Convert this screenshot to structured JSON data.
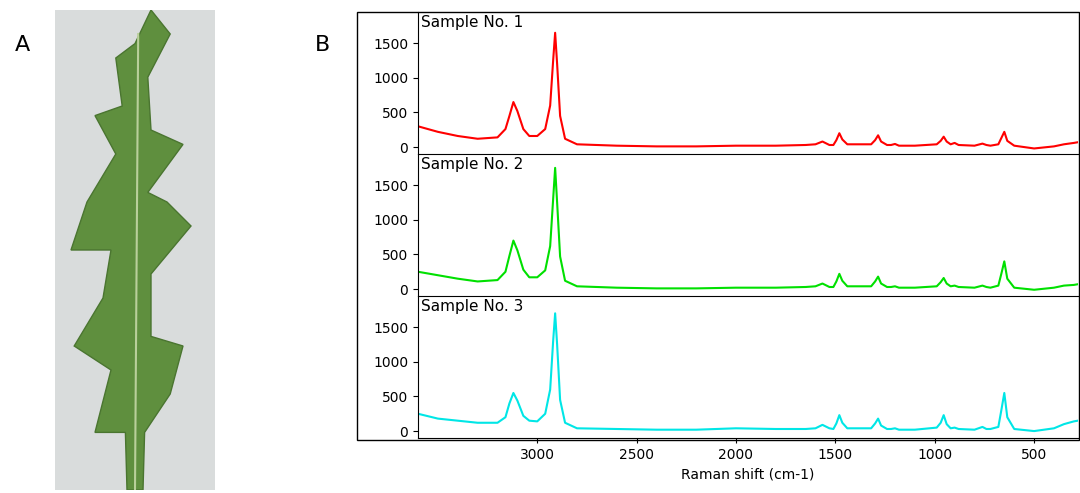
{
  "panel_labels": [
    "A",
    "B"
  ],
  "chart_data": [
    {
      "type": "line",
      "title": "Sample No. 1",
      "tick_labels": "y",
      "x": [
        3600,
        3500,
        3400,
        3300,
        3200,
        3160,
        3140,
        3120,
        3100,
        3070,
        3040,
        3000,
        2960,
        2935,
        2920,
        2910,
        2900,
        2885,
        2860,
        2800,
        2600,
        2400,
        2200,
        2000,
        1800,
        1650,
        1600,
        1565,
        1530,
        1510,
        1495,
        1480,
        1465,
        1440,
        1320,
        1300,
        1285,
        1270,
        1240,
        1220,
        1200,
        1180,
        1100,
        990,
        970,
        955,
        940,
        920,
        900,
        880,
        800,
        760,
        740,
        720,
        680,
        665,
        650,
        635,
        600,
        500,
        400,
        350,
        300,
        280
      ],
      "series": [
        {
          "color": "#ff0000",
          "values": [
            300,
            220,
            160,
            120,
            140,
            260,
            450,
            650,
            520,
            260,
            160,
            160,
            260,
            600,
            1250,
            1650,
            1200,
            450,
            120,
            40,
            20,
            10,
            10,
            20,
            20,
            30,
            40,
            80,
            30,
            30,
            100,
            200,
            110,
            40,
            40,
            100,
            170,
            80,
            30,
            30,
            45,
            20,
            20,
            40,
            90,
            150,
            80,
            40,
            60,
            30,
            20,
            50,
            30,
            20,
            40,
            130,
            220,
            90,
            20,
            -20,
            10,
            40,
            60,
            70
          ]
        }
      ],
      "xlim": [
        3600,
        280
      ],
      "xticks": [
        3000,
        2500,
        2000,
        1500,
        1000,
        500
      ],
      "ylim": [
        -100,
        1950
      ],
      "yticks": [
        0,
        500,
        1000,
        1500
      ]
    },
    {
      "type": "line",
      "title": "Sample No. 2",
      "tick_labels": "y",
      "x": [
        3600,
        3500,
        3400,
        3300,
        3200,
        3160,
        3140,
        3120,
        3100,
        3070,
        3040,
        3000,
        2960,
        2935,
        2920,
        2910,
        2900,
        2885,
        2860,
        2800,
        2600,
        2400,
        2200,
        2000,
        1800,
        1650,
        1600,
        1565,
        1530,
        1510,
        1495,
        1480,
        1465,
        1440,
        1320,
        1300,
        1285,
        1270,
        1240,
        1220,
        1200,
        1180,
        1100,
        990,
        970,
        955,
        940,
        920,
        900,
        880,
        800,
        760,
        740,
        720,
        680,
        665,
        650,
        635,
        600,
        500,
        400,
        350,
        300,
        280
      ],
      "series": [
        {
          "color": "#00e000",
          "values": [
            250,
            200,
            150,
            110,
            130,
            250,
            480,
            700,
            560,
            280,
            170,
            170,
            270,
            620,
            1300,
            1750,
            1250,
            470,
            120,
            40,
            20,
            10,
            10,
            20,
            20,
            30,
            40,
            80,
            30,
            30,
            110,
            220,
            120,
            40,
            40,
            110,
            180,
            80,
            30,
            30,
            40,
            20,
            20,
            40,
            100,
            160,
            80,
            40,
            50,
            30,
            20,
            50,
            30,
            20,
            50,
            220,
            400,
            150,
            20,
            -10,
            20,
            50,
            60,
            70
          ]
        }
      ],
      "xlim": [
        3600,
        280
      ],
      "xticks": [
        3000,
        2500,
        2000,
        1500,
        1000,
        500
      ],
      "ylim": [
        -100,
        1950
      ],
      "yticks": [
        0,
        500,
        1000,
        1500
      ]
    },
    {
      "type": "line",
      "title": "Sample No. 3",
      "x_label": "Raman shift (cm-1)",
      "x": [
        3600,
        3500,
        3400,
        3300,
        3200,
        3160,
        3140,
        3120,
        3100,
        3070,
        3040,
        3000,
        2960,
        2935,
        2920,
        2910,
        2900,
        2885,
        2860,
        2800,
        2600,
        2400,
        2200,
        2000,
        1800,
        1650,
        1600,
        1565,
        1530,
        1510,
        1495,
        1480,
        1465,
        1440,
        1320,
        1300,
        1285,
        1270,
        1240,
        1220,
        1200,
        1180,
        1100,
        990,
        970,
        955,
        940,
        920,
        900,
        880,
        800,
        760,
        740,
        720,
        680,
        665,
        650,
        635,
        600,
        500,
        400,
        350,
        300,
        280
      ],
      "series": [
        {
          "color": "#00e6e6",
          "values": [
            250,
            180,
            150,
            120,
            120,
            200,
            400,
            550,
            440,
            220,
            150,
            140,
            250,
            600,
            1300,
            1700,
            1250,
            450,
            120,
            40,
            30,
            20,
            20,
            40,
            30,
            30,
            40,
            90,
            40,
            30,
            110,
            230,
            120,
            40,
            40,
            110,
            180,
            80,
            30,
            30,
            40,
            20,
            20,
            50,
            120,
            230,
            100,
            40,
            50,
            30,
            20,
            60,
            30,
            30,
            60,
            300,
            550,
            200,
            30,
            0,
            40,
            100,
            140,
            150
          ]
        }
      ],
      "xlim": [
        3600,
        280
      ],
      "xticks": [
        3000,
        2500,
        2000,
        1500,
        1000,
        500
      ],
      "ylim": [
        -100,
        1950
      ],
      "yticks": [
        0,
        500,
        1000,
        1500
      ]
    }
  ]
}
